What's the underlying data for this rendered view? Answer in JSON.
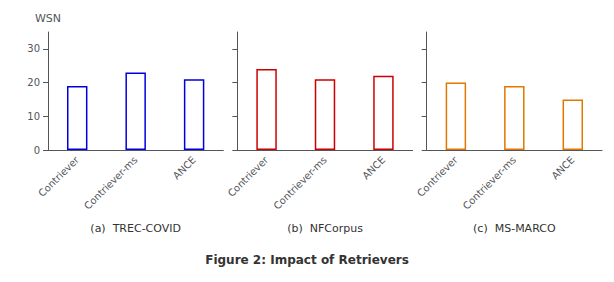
{
  "title": "Figure 2: Impact of Retrievers",
  "chart_data": [
    {
      "type": "bar",
      "title": "(a)  TREC-COVID",
      "ylabel": "WSN",
      "categories": [
        "Contriever",
        "Contriever-ms",
        "ANCE"
      ],
      "values": [
        19,
        23,
        21
      ],
      "color": "#0000dd",
      "ylim": [
        0,
        35
      ],
      "yticks": [
        0,
        10,
        20,
        30
      ],
      "grid": false
    },
    {
      "type": "bar",
      "title": "(b)  NFCorpus",
      "categories": [
        "Contriever",
        "Contriever-ms",
        "ANCE"
      ],
      "values": [
        24,
        21,
        22
      ],
      "color": "#cc0000",
      "ylim": [
        0,
        35
      ],
      "yticks": [
        0,
        10,
        20,
        30
      ],
      "grid": false,
      "tick_labels": "x"
    },
    {
      "type": "bar",
      "title": "(c)  MS-MARCO",
      "categories": [
        "Contriever",
        "Contriever-ms",
        "ANCE"
      ],
      "values": [
        20,
        19,
        15
      ],
      "color": "#e07800",
      "ylim": [
        0,
        35
      ],
      "yticks": [
        0,
        10,
        20,
        30
      ],
      "grid": false,
      "tick_labels": "x"
    }
  ]
}
